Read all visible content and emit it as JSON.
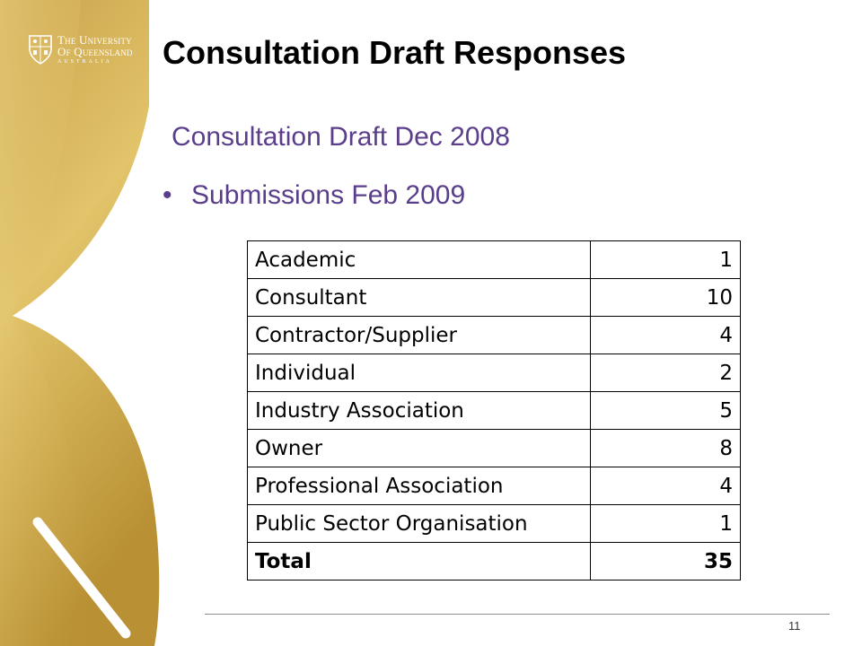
{
  "slide": {
    "title": "Consultation Draft Responses",
    "subtitle": "Consultation Draft Dec 2008",
    "bullet": "Submissions Feb 2009",
    "page_number": "11",
    "colors": {
      "accent_text": "#5a3e8c",
      "gold": "#d6b24a",
      "title": "#000000"
    }
  },
  "logo": {
    "line1": "The University",
    "line2": "Of Queensland",
    "line3": "AUSTRALIA",
    "icon": "crest-icon"
  },
  "table": {
    "rows": [
      {
        "category": "Academic",
        "count": "1"
      },
      {
        "category": "Consultant",
        "count": "10"
      },
      {
        "category": "Contractor/Supplier",
        "count": "4"
      },
      {
        "category": "Individual",
        "count": "2"
      },
      {
        "category": "Industry Association",
        "count": "5"
      },
      {
        "category": "Owner",
        "count": "8"
      },
      {
        "category": "Professional Association",
        "count": "4"
      },
      {
        "category": "Public Sector Organisation",
        "count": "1"
      }
    ],
    "total": {
      "label": "Total",
      "count": "35"
    }
  }
}
